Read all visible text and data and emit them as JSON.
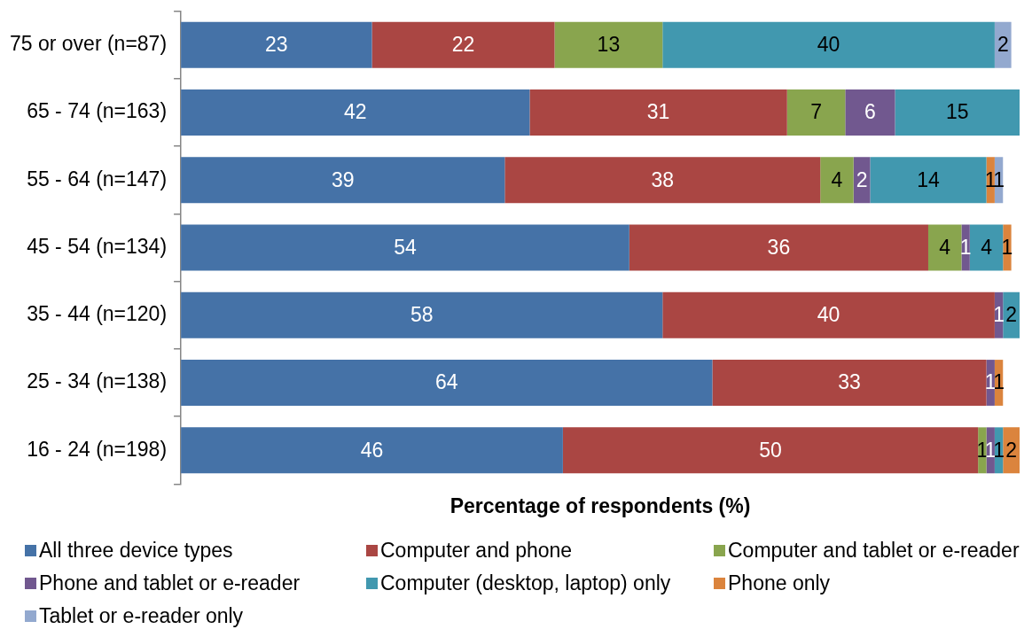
{
  "chart_data": {
    "type": "bar",
    "orientation": "horizontal",
    "stacked": true,
    "categories": [
      "75 or over (n=87)",
      "65 - 74 (n=163)",
      "55 - 64 (n=147)",
      "45 - 54 (n=134)",
      "35 - 44 (n=120)",
      "25 - 34 (n=138)",
      "16 - 24 (n=198)"
    ],
    "series": [
      {
        "name": "All three device types",
        "color": "#4572a7",
        "values": [
          23,
          42,
          39,
          54,
          58,
          64,
          46
        ]
      },
      {
        "name": "Computer and phone",
        "color": "#aa4643",
        "values": [
          22,
          31,
          38,
          36,
          40,
          33,
          50
        ]
      },
      {
        "name": "Computer and tablet or e-reader",
        "color": "#89a54e",
        "values": [
          13,
          7,
          4,
          4,
          null,
          null,
          1
        ]
      },
      {
        "name": "Phone and tablet or e-reader",
        "color": "#71588f",
        "values": [
          null,
          6,
          2,
          1,
          1,
          1,
          1
        ]
      },
      {
        "name": "Computer (desktop, laptop) only",
        "color": "#4198af",
        "values": [
          40,
          15,
          14,
          4,
          2,
          null,
          1
        ]
      },
      {
        "name": "Phone only",
        "color": "#db843d",
        "values": [
          null,
          null,
          1,
          1,
          null,
          1,
          2
        ]
      },
      {
        "name": "Tablet or e-reader only",
        "color": "#93a9cf",
        "values": [
          2,
          null,
          1,
          null,
          null,
          null,
          null
        ]
      }
    ],
    "xlabel": "Percentage of respondents (%)",
    "data_labels": true,
    "legend": "bottom",
    "tick_labels": "y"
  }
}
